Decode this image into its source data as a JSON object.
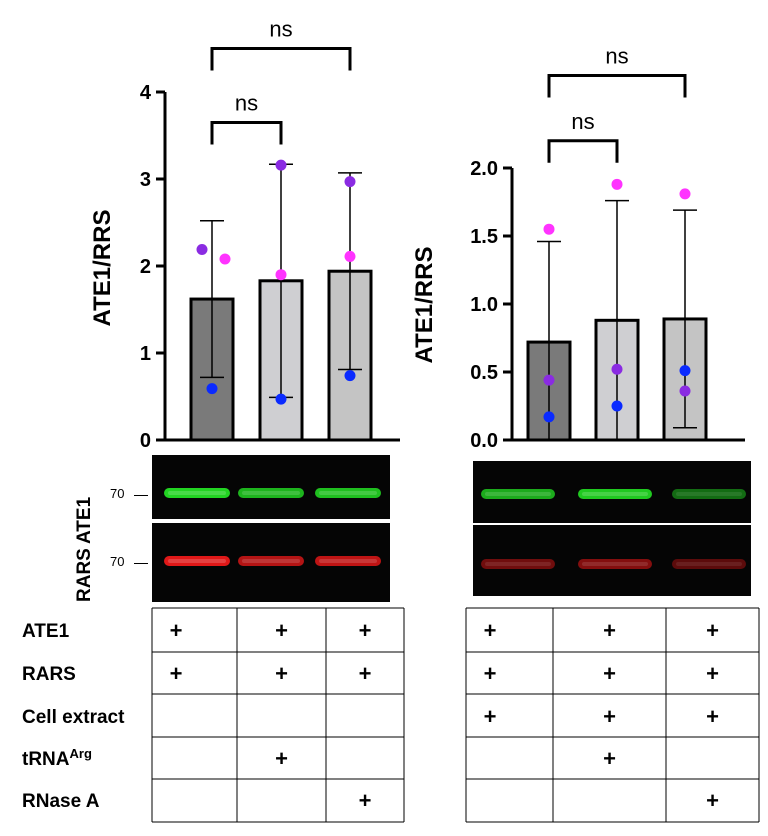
{
  "chart_data": [
    {
      "type": "bar",
      "ylabel": "ATE1/RRS",
      "ylim": [
        0,
        4
      ],
      "yticks": [
        "0",
        "1",
        "2",
        "3",
        "4"
      ],
      "ytick_values": [
        0,
        1,
        2,
        3,
        4
      ],
      "categories": [
        "ATE1+RARS",
        "ATE1+RARS+tRNAArg",
        "ATE1+RARS+RNase A"
      ],
      "values": [
        1.62,
        1.83,
        1.94
      ],
      "sd": [
        0.9,
        1.34,
        1.13
      ],
      "bar_colors": [
        "#7a7a7a",
        "#cfcfd2",
        "#c4c4c4"
      ],
      "points": [
        [
          {
            "y": 2.19,
            "color": "#8a2be2"
          },
          {
            "y": 2.08,
            "color": "#ff33ff"
          },
          {
            "y": 0.59,
            "color": "#0a2aff"
          }
        ],
        [
          {
            "y": 3.16,
            "color": "#8a2be2"
          },
          {
            "y": 1.9,
            "color": "#ff33ff"
          },
          {
            "y": 0.47,
            "color": "#0a2aff"
          }
        ],
        [
          {
            "y": 2.97,
            "color": "#8a2be2"
          },
          {
            "y": 2.11,
            "color": "#ff33ff"
          },
          {
            "y": 0.74,
            "color": "#0a2aff"
          }
        ]
      ],
      "comparisons": [
        {
          "from": 0,
          "to": 1,
          "label": "ns",
          "y": 3.65
        },
        {
          "from": 0,
          "to": 2,
          "label": "ns",
          "y": 4.5
        }
      ]
    },
    {
      "type": "bar",
      "ylabel": "ATE1/RRS",
      "ylim": [
        0,
        2.0
      ],
      "yticks": [
        "0.0",
        "0.5",
        "1.0",
        "1.5",
        "2.0"
      ],
      "ytick_values": [
        0,
        0.5,
        1.0,
        1.5,
        2.0
      ],
      "categories": [
        "ATE1+RARS+Cell extract",
        "ATE1+RARS+Cell extract+tRNAArg",
        "ATE1+RARS+Cell extract+RNase A"
      ],
      "values": [
        0.72,
        0.88,
        0.89
      ],
      "sd": [
        0.74,
        0.88,
        0.8
      ],
      "bar_colors": [
        "#7a7a7a",
        "#cfcfd2",
        "#c4c4c4"
      ],
      "points": [
        [
          {
            "y": 1.55,
            "color": "#ff33ff"
          },
          {
            "y": 0.44,
            "color": "#8a2be2"
          },
          {
            "y": 0.17,
            "color": "#0a2aff"
          }
        ],
        [
          {
            "y": 1.88,
            "color": "#ff33ff"
          },
          {
            "y": 0.52,
            "color": "#8a2be2"
          },
          {
            "y": 0.25,
            "color": "#0a2aff"
          }
        ],
        [
          {
            "y": 1.81,
            "color": "#ff33ff"
          },
          {
            "y": 0.51,
            "color": "#0a2aff"
          },
          {
            "y": 0.36,
            "color": "#8a2be2"
          }
        ]
      ],
      "comparisons": [
        {
          "from": 0,
          "to": 1,
          "label": "ns",
          "y": 2.2
        },
        {
          "from": 0,
          "to": 2,
          "label": "ns",
          "y": 2.68
        }
      ]
    }
  ],
  "blots": {
    "left": {
      "top_label": "ATE1",
      "bottom_label": "RARS",
      "marker_top": "70",
      "marker_bottom": "70",
      "green_intensity": [
        1.0,
        0.85,
        0.9
      ],
      "red_intensity": [
        1.0,
        0.8,
        0.85
      ]
    },
    "right": {
      "green_intensity": [
        0.8,
        0.95,
        0.5
      ],
      "red_intensity": [
        0.55,
        0.65,
        0.45
      ]
    }
  },
  "condition_table": {
    "row_labels": [
      "ATE1",
      "RARS",
      "Cell extract",
      "tRNA",
      "RNase A"
    ],
    "trna_superscript": "Arg",
    "left_cells": [
      [
        "+",
        "+",
        "+"
      ],
      [
        "+",
        "+",
        "+"
      ],
      [
        "",
        "",
        ""
      ],
      [
        "",
        "+",
        ""
      ],
      [
        "",
        "",
        "+"
      ]
    ],
    "right_cells": [
      [
        "+",
        "+",
        "+"
      ],
      [
        "+",
        "+",
        "+"
      ],
      [
        "+",
        "+",
        "+"
      ],
      [
        "",
        "+",
        ""
      ],
      [
        "",
        "",
        "+"
      ]
    ]
  }
}
